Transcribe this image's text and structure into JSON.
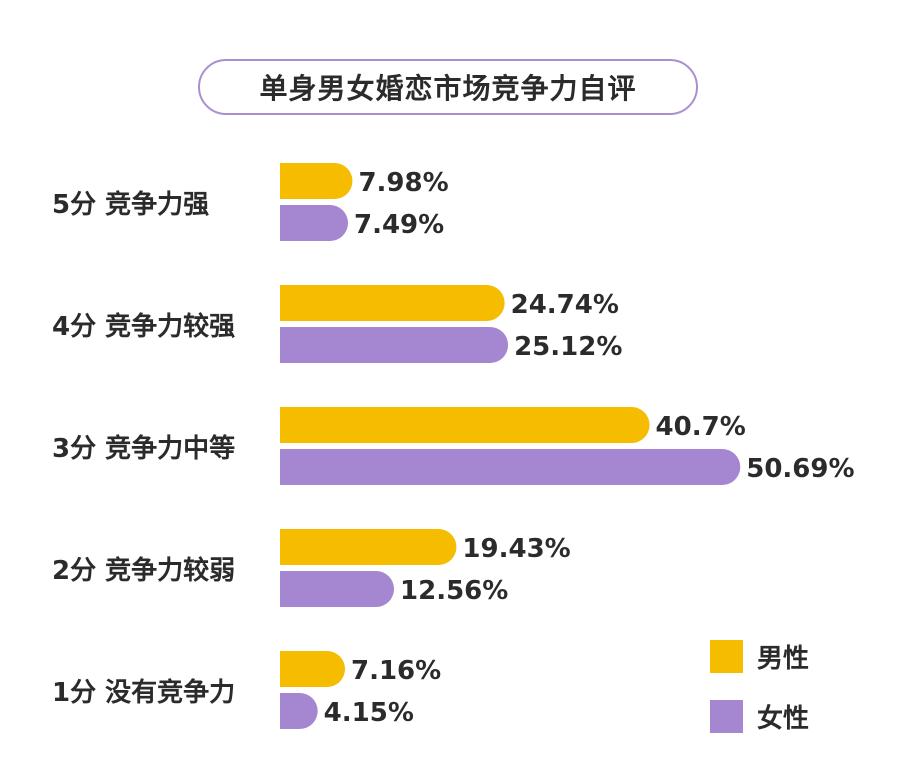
{
  "chart_data": {
    "type": "bar",
    "orientation": "horizontal",
    "title": "单身男女婚恋市场竞争力自评",
    "categories": [
      "5分 竞争力强",
      "4分 竞争力较强",
      "3分 竞争力中等",
      "2分 竞争力较弱",
      "1分 没有竞争力"
    ],
    "series": [
      {
        "name": "男性",
        "color": "#f5bc00",
        "values": [
          7.98,
          24.74,
          40.7,
          19.43,
          7.16
        ],
        "labels": [
          "7.98%",
          "24.74%",
          "40.7%",
          "19.43%",
          "7.16%"
        ]
      },
      {
        "name": "女性",
        "color": "#a586d0",
        "values": [
          7.49,
          25.12,
          50.69,
          12.56,
          4.15
        ],
        "labels": [
          "7.49%",
          "25.12%",
          "50.69%",
          "12.56%",
          "4.15%"
        ]
      }
    ],
    "unit": "%",
    "grid": false,
    "legend_position": "bottom-right"
  }
}
